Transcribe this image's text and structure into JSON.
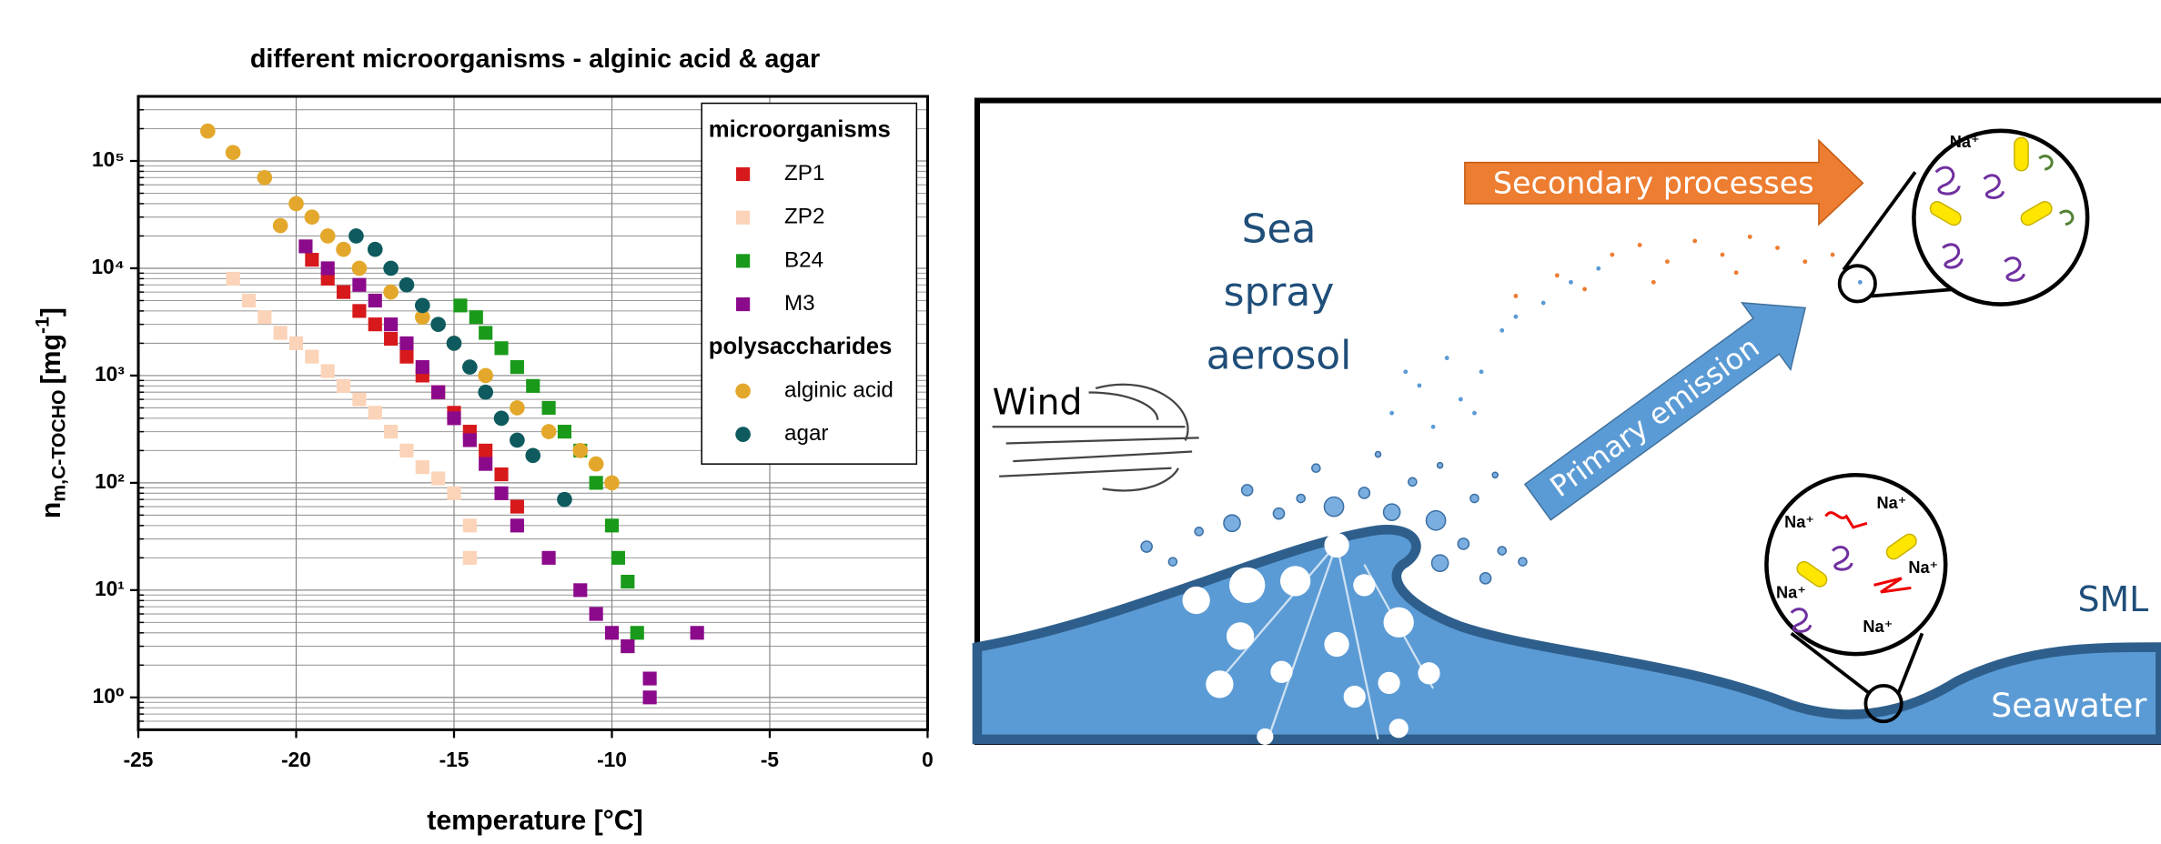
{
  "chart_data": {
    "type": "scatter",
    "title": "different microorganisms - alginic acid & agar",
    "xlabel": "temperature [°C]",
    "ylabel": {
      "base": "n",
      "sub": "m,C-TOCHO",
      "unit": "[mg",
      "sup": "-1",
      "close": "]"
    },
    "xlim": [
      -25,
      0
    ],
    "xticks": [
      -25,
      -20,
      -15,
      -10,
      -5,
      0
    ],
    "ylim": [
      0.5,
      400000
    ],
    "log_y": true,
    "grid": true,
    "minor_grid": true,
    "yticks": [
      {
        "value": 1,
        "label": "10⁰"
      },
      {
        "value": 10,
        "label": "10¹"
      },
      {
        "value": 100,
        "label": "10²"
      },
      {
        "value": 1000,
        "label": "10³"
      },
      {
        "value": 10000,
        "label": "10⁴"
      },
      {
        "value": 100000,
        "label": "10⁵"
      }
    ],
    "legend": "upper right",
    "legend_groups": [
      "microorganisms",
      "polysaccharides"
    ],
    "series": [
      {
        "name": "ZP1",
        "color": "#d7191c",
        "marker": "square",
        "x": [
          -19.5,
          -19,
          -18.5,
          -18,
          -17.5,
          -17,
          -16.5,
          -16,
          -15.5,
          -15,
          -14.5,
          -14,
          -13.5,
          -13
        ],
        "values": [
          12000,
          8000,
          6000,
          4000,
          3000,
          2200,
          1500,
          1000,
          700,
          450,
          300,
          200,
          120,
          60
        ]
      },
      {
        "name": "ZP2",
        "color": "#fbd3b8",
        "marker": "square",
        "x": [
          -22,
          -21.5,
          -21,
          -20.5,
          -20,
          -19.5,
          -19,
          -18.5,
          -18,
          -17.5,
          -17,
          -16.5,
          -16,
          -15.5,
          -15,
          -14.5,
          -14.5
        ],
        "values": [
          8000,
          5000,
          3500,
          2500,
          2000,
          1500,
          1100,
          800,
          600,
          450,
          300,
          200,
          140,
          110,
          80,
          40,
          20
        ]
      },
      {
        "name": "B24",
        "color": "#1a9a1a",
        "marker": "square",
        "x": [
          -14.8,
          -14.3,
          -14,
          -13.5,
          -13,
          -12.5,
          -12,
          -11.5,
          -11,
          -10.5,
          -10,
          -9.8,
          -9.5,
          -9.2,
          -9.5
        ],
        "values": [
          4500,
          3500,
          2500,
          1800,
          1200,
          800,
          500,
          300,
          200,
          100,
          40,
          20,
          12,
          4,
          3
        ]
      },
      {
        "name": "M3",
        "color": "#8b0a8b",
        "marker": "square",
        "x": [
          -19.7,
          -19,
          -18,
          -17.5,
          -17,
          -16.5,
          -16,
          -15.5,
          -15,
          -14.5,
          -14,
          -13.5,
          -13,
          -12,
          -11,
          -10.5,
          -10,
          -9.5,
          -8.8,
          -8.8,
          -7.3
        ],
        "values": [
          16000,
          10000,
          7000,
          5000,
          3000,
          2000,
          1200,
          700,
          400,
          250,
          150,
          80,
          40,
          20,
          10,
          6,
          4,
          3,
          1.5,
          1,
          4
        ]
      },
      {
        "name": "alginic acid",
        "color": "#e3a82b",
        "marker": "circle",
        "x": [
          -22.8,
          -22,
          -21,
          -20,
          -19.5,
          -20.5,
          -19,
          -18.5,
          -18,
          -17,
          -16,
          -15,
          -14,
          -13,
          -12,
          -11,
          -10.5,
          -10
        ],
        "values": [
          190000,
          120000,
          70000,
          40000,
          30000,
          25000,
          20000,
          15000,
          10000,
          6000,
          3500,
          2000,
          1000,
          500,
          300,
          200,
          150,
          100
        ]
      },
      {
        "name": "agar",
        "color": "#0e5a5e",
        "marker": "circle",
        "x": [
          -18.1,
          -17.5,
          -17,
          -16.5,
          -16,
          -15.5,
          -15,
          -14.5,
          -14,
          -13.5,
          -13,
          -12.5,
          -11.5
        ],
        "values": [
          20000,
          15000,
          10000,
          7000,
          4500,
          3000,
          2000,
          1200,
          700,
          400,
          250,
          180,
          70
        ]
      }
    ]
  },
  "diagram": {
    "secondary": "Secondary processes",
    "primary": "Primary emission",
    "aerosol": [
      "Sea",
      "spray",
      "aerosol"
    ],
    "wind": "Wind",
    "sml": "SML",
    "seawater": "Seawater",
    "ions_top": "Na⁺",
    "ions_bottom": [
      "Na⁺",
      "Na⁺",
      "Na⁺",
      "Na⁺",
      "Na⁺"
    ]
  }
}
